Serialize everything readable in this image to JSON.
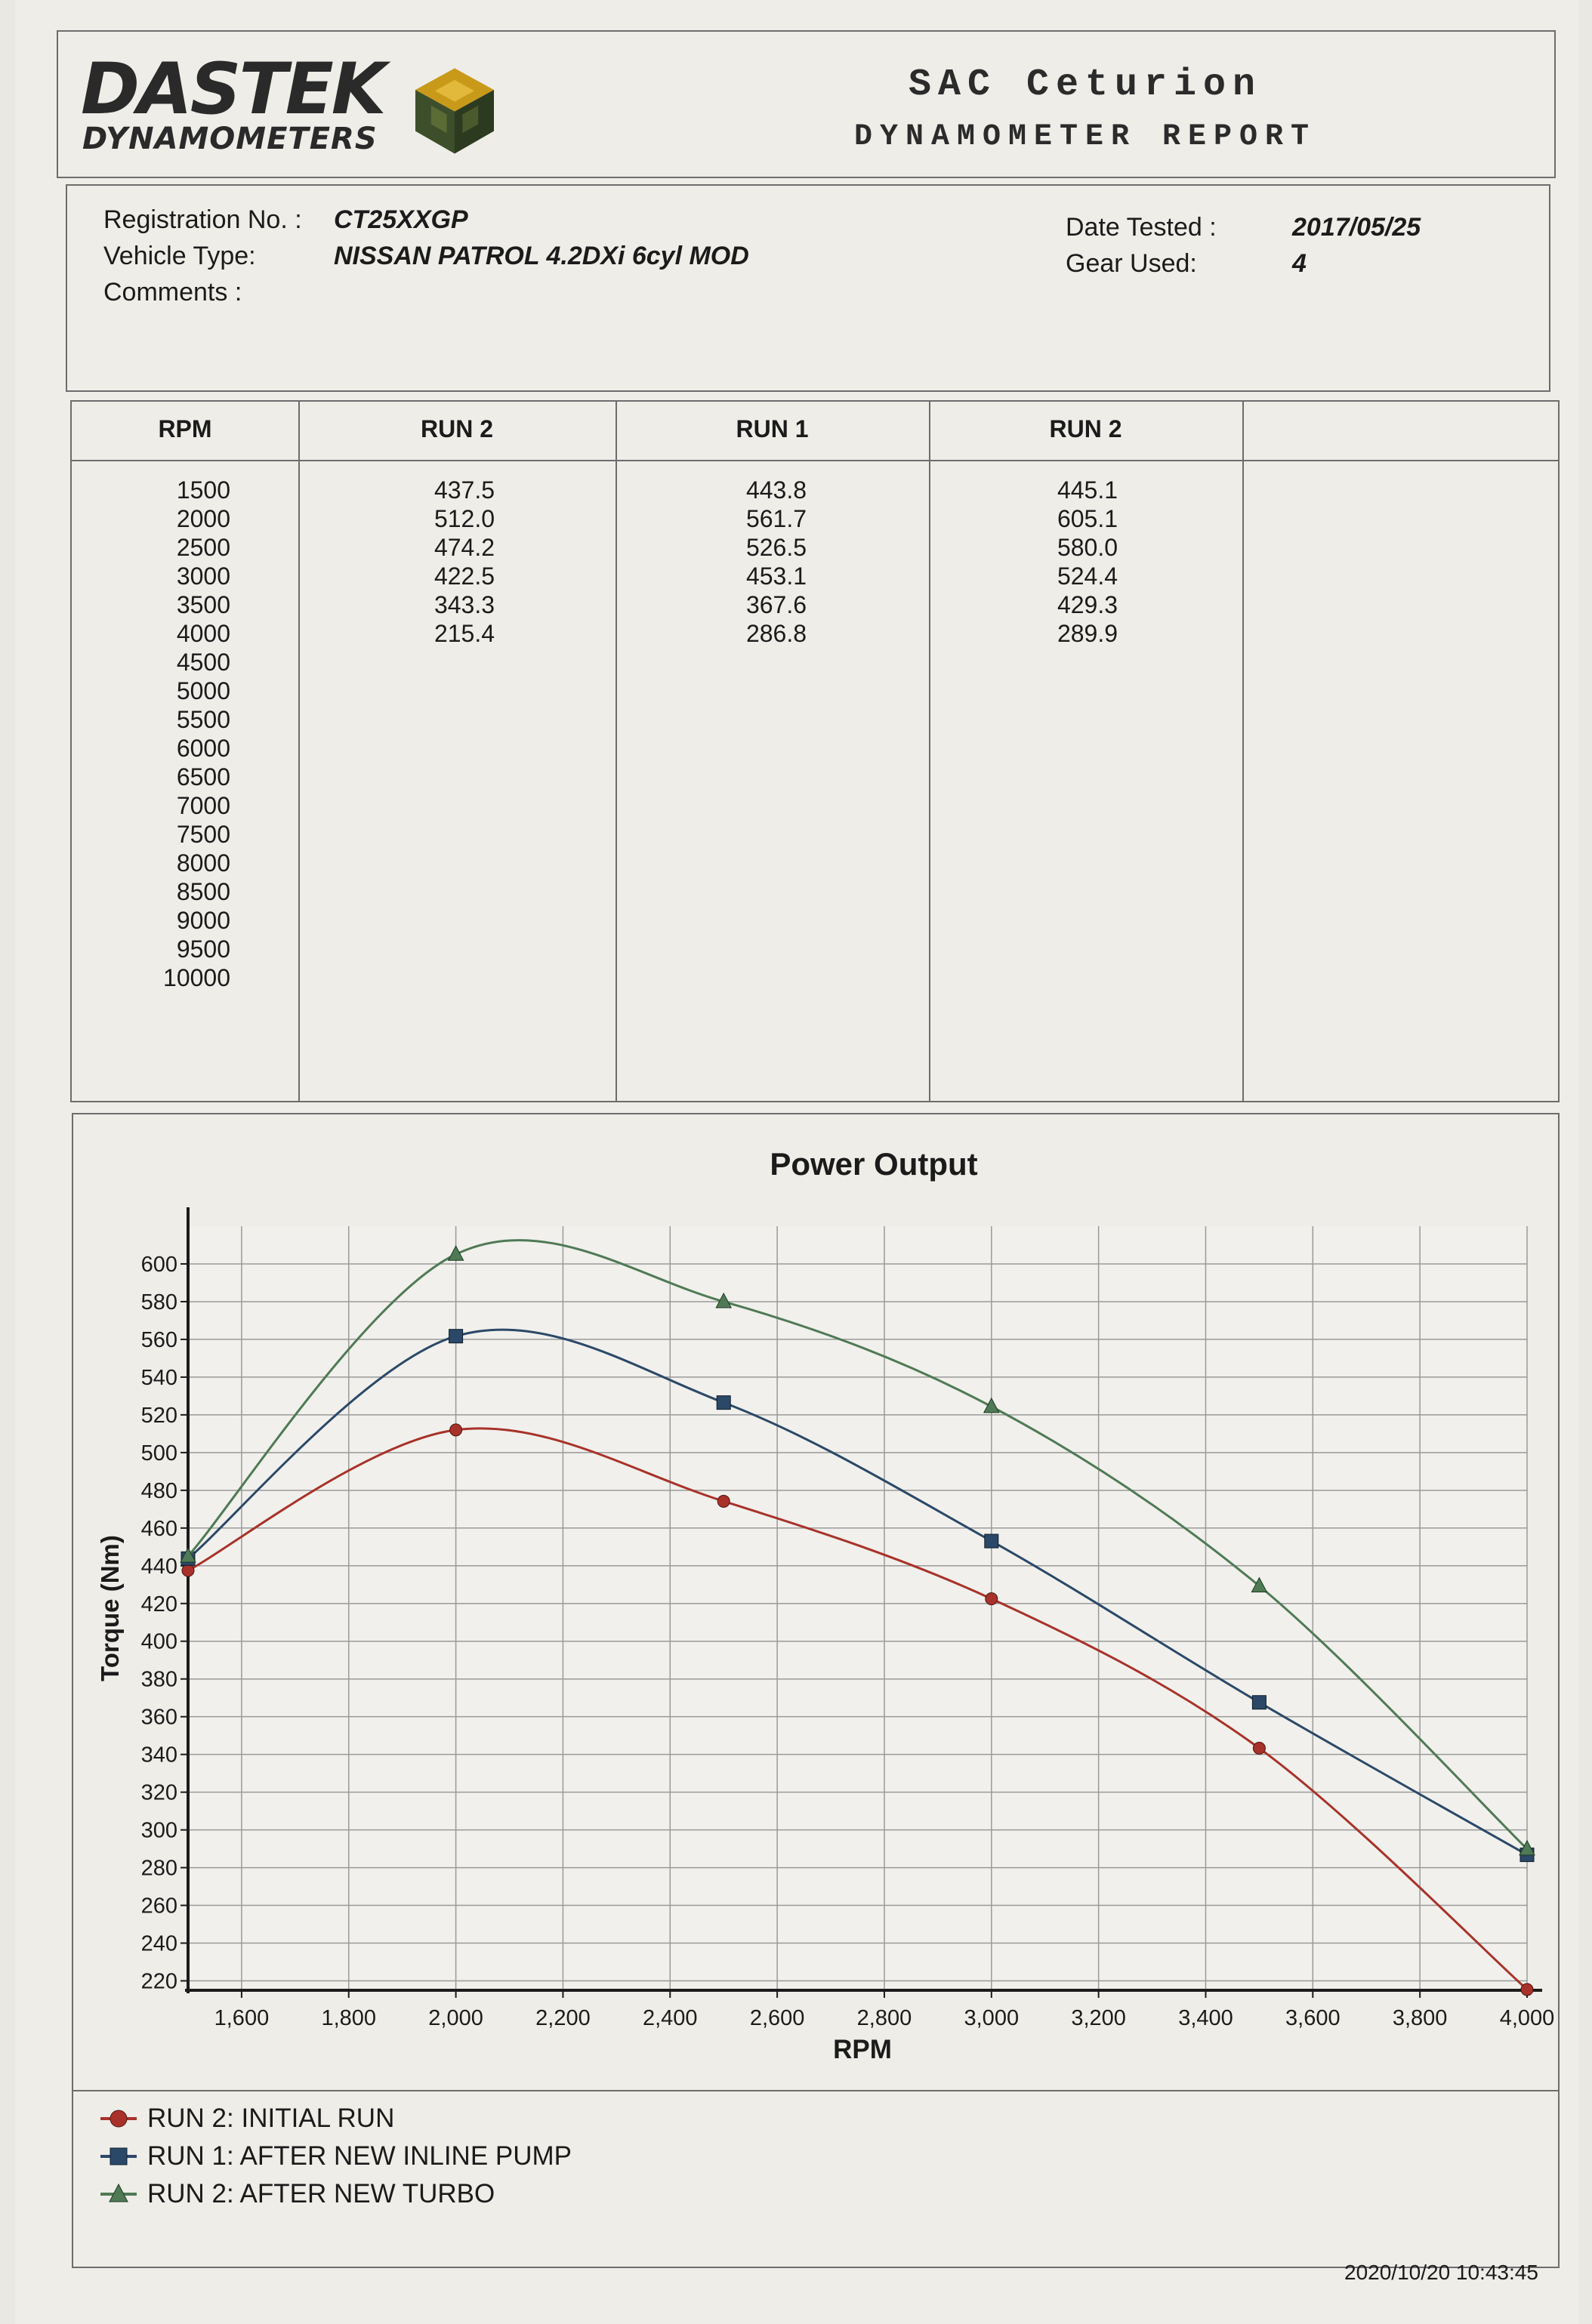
{
  "header": {
    "logo_main": "DASTEK",
    "logo_sub": "DYNAMOMETERS",
    "title": "SAC Ceturion",
    "subtitle": "DYNAMOMETER REPORT"
  },
  "info": {
    "registration_label": "Registration No. :",
    "registration_value": "CT25XXGP",
    "vehicle_label": "Vehicle Type:",
    "vehicle_value": "NISSAN PATROL 4.2DXi 6cyl MOD",
    "comments_label": "Comments :",
    "date_label": "Date Tested :",
    "date_value": "2017/05/25",
    "gear_label": "Gear Used:",
    "gear_value": "4"
  },
  "table": {
    "headers": [
      "RPM",
      "RUN 2",
      "RUN 1",
      "RUN 2",
      ""
    ],
    "rpm": [
      "1500",
      "2000",
      "2500",
      "3000",
      "3500",
      "4000",
      "4500",
      "5000",
      "5500",
      "6000",
      "6500",
      "7000",
      "7500",
      "8000",
      "8500",
      "9000",
      "9500",
      "10000"
    ],
    "run2_initial": [
      "437.5",
      "512.0",
      "474.2",
      "422.5",
      "343.3",
      "215.4"
    ],
    "run1_pump": [
      "443.8",
      "561.7",
      "526.5",
      "453.1",
      "367.6",
      "286.8"
    ],
    "run2_turbo": [
      "445.1",
      "605.1",
      "580.0",
      "524.4",
      "429.3",
      "289.9"
    ]
  },
  "chart_data": {
    "type": "line",
    "title": "Power Output",
    "xlabel": "RPM",
    "ylabel": "Torque (Nm)",
    "xlim": [
      1500,
      4000
    ],
    "ylim": [
      215,
      620
    ],
    "x_ticks": [
      1600,
      1800,
      2000,
      2200,
      2400,
      2600,
      2800,
      3000,
      3200,
      3400,
      3600,
      3800,
      4000
    ],
    "x_tick_labels": [
      "1,600",
      "1,800",
      "2,000",
      "2,200",
      "2,400",
      "2,600",
      "2,800",
      "3,000",
      "3,200",
      "3,400",
      "3,600",
      "3,800",
      "4,000"
    ],
    "y_ticks": [
      220,
      240,
      260,
      280,
      300,
      320,
      340,
      360,
      380,
      400,
      420,
      440,
      460,
      480,
      500,
      520,
      540,
      560,
      580,
      600
    ],
    "grid": true,
    "legend_position": "bottom",
    "series": [
      {
        "name": "RUN 2: INITIAL RUN",
        "color": "#a8322a",
        "marker": "circle",
        "x": [
          1500,
          2000,
          2500,
          3000,
          3500,
          4000
        ],
        "values": [
          437.5,
          512.0,
          474.2,
          422.5,
          343.3,
          215.4
        ]
      },
      {
        "name": "RUN 1: AFTER NEW INLINE PUMP",
        "color": "#2b4868",
        "marker": "square",
        "x": [
          1500,
          2000,
          2500,
          3000,
          3500,
          4000
        ],
        "values": [
          443.8,
          561.7,
          526.5,
          453.1,
          367.6,
          286.8
        ]
      },
      {
        "name": "RUN 2: AFTER NEW TURBO",
        "color": "#4f7a55",
        "marker": "triangle",
        "x": [
          1500,
          2000,
          2500,
          3000,
          3500,
          4000
        ],
        "values": [
          445.1,
          605.1,
          580.0,
          524.4,
          429.3,
          289.9
        ]
      }
    ]
  },
  "footer": {
    "timestamp": "2020/10/20 10:43:45"
  }
}
